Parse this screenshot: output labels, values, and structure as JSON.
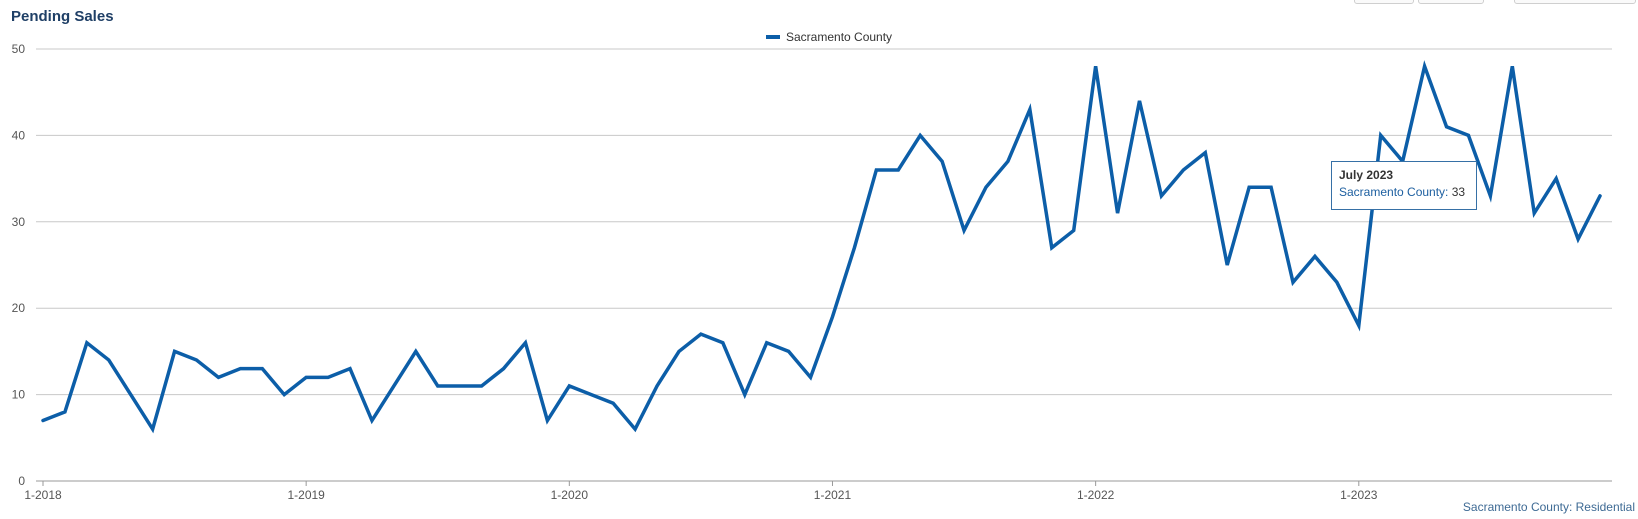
{
  "chart_title": "Pending Sales",
  "footer_text": "Sacramento County: Residential",
  "tooltip": {
    "title": "July 2023",
    "series_label": "Sacramento County: ",
    "value": "33"
  },
  "colors": {
    "line": "#0c5ea8",
    "grid": "#c8c8c8",
    "axis_text": "#555555",
    "title": "#1f3f66"
  },
  "chart_data": {
    "type": "line",
    "title": "Pending Sales",
    "xlabel": "",
    "ylabel": "",
    "ylim": [
      0,
      50
    ],
    "y_ticks": [
      0,
      10,
      20,
      30,
      40,
      50
    ],
    "x_tick_labels": [
      "1-2018",
      "1-2019",
      "1-2020",
      "1-2021",
      "1-2022",
      "1-2023"
    ],
    "x_tick_month_index": [
      0,
      12,
      24,
      36,
      48,
      60
    ],
    "legend": "top-center",
    "grid": true,
    "series": [
      {
        "name": "Sacramento County",
        "start": "2018-01",
        "values": [
          7,
          8,
          16,
          14,
          10,
          6,
          15,
          14,
          12,
          13,
          13,
          10,
          12,
          12,
          13,
          7,
          11,
          15,
          11,
          11,
          11,
          13,
          16,
          7,
          11,
          10,
          9,
          6,
          11,
          15,
          17,
          16,
          10,
          16,
          15,
          12,
          19,
          27,
          36,
          36,
          40,
          37,
          29,
          34,
          37,
          43,
          27,
          29,
          48,
          31,
          44,
          33,
          36,
          38,
          25,
          34,
          34,
          23,
          26,
          23,
          18,
          40,
          37,
          48,
          41,
          40,
          33,
          48,
          31,
          35,
          28,
          33
        ]
      }
    ]
  }
}
